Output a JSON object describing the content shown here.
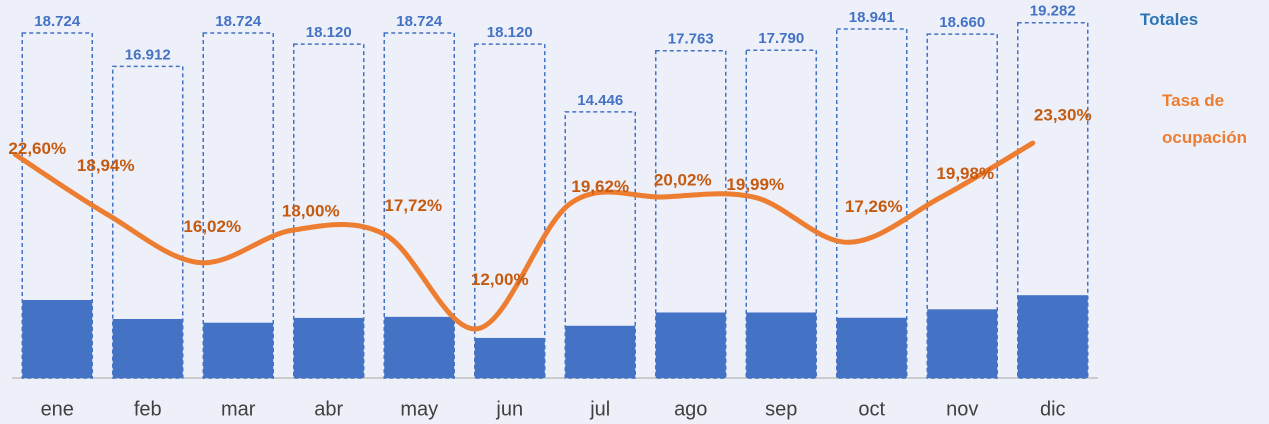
{
  "chart_data": {
    "type": "bar",
    "categories": [
      "ene",
      "feb",
      "mar",
      "abr",
      "may",
      "jun",
      "jul",
      "ago",
      "sep",
      "oct",
      "nov",
      "dic"
    ],
    "series": [
      {
        "name": "Totales",
        "color": "#4472c4",
        "values": [
          18724,
          16912,
          18724,
          18120,
          18724,
          18120,
          14446,
          17763,
          17790,
          18941,
          18660,
          19282
        ],
        "value_labels": [
          "18.724",
          "16.912",
          "18.724",
          "18.120",
          "18.724",
          "18.120",
          "14.446",
          "17.763",
          "17.790",
          "18.941",
          "18.660",
          "19.282"
        ]
      },
      {
        "color": "#4472c4",
        "values": [
          4232,
          3203,
          3000,
          3262,
          3318,
          2174,
          2834,
          3556,
          3556,
          3269,
          3728,
          4493
        ]
      },
      {
        "name": "Tasa de ocupación",
        "type": "line",
        "axis": "y2",
        "color": "#ed7d31",
        "values": [
          22.6,
          18.94,
          16.02,
          18.0,
          17.72,
          12.0,
          19.62,
          20.02,
          19.99,
          17.26,
          19.98,
          23.3
        ],
        "value_labels": [
          "22,60%",
          "18,94%",
          "16,02%",
          "18,00%",
          "17,72%",
          "12,00%",
          "19,62%",
          "20,02%",
          "19,99%",
          "17,26%",
          "19,98%",
          "23,30%"
        ]
      }
    ],
    "ylim": [
      0,
      18724
    ],
    "y2lim": [
      9,
      30
    ]
  }
}
